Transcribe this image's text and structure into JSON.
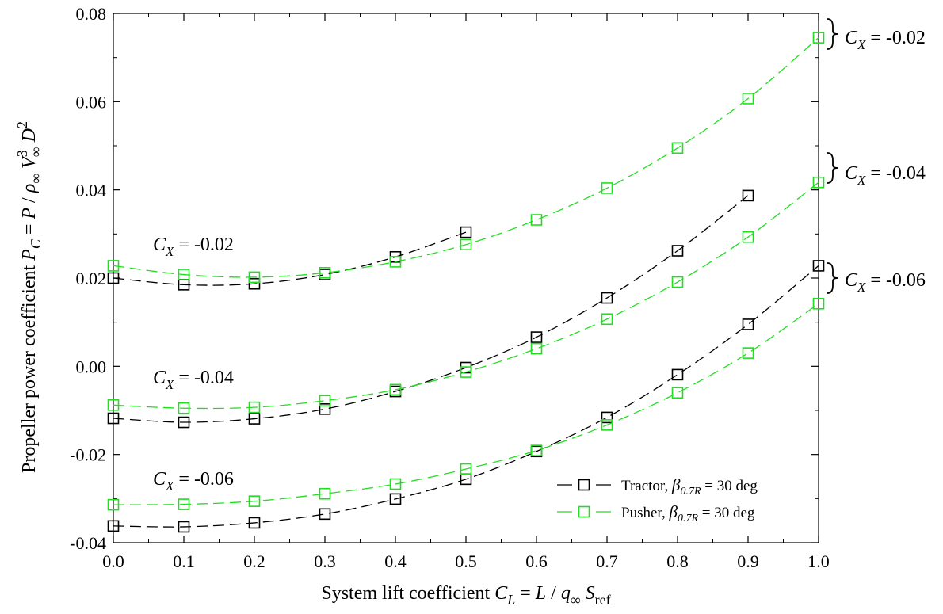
{
  "chart_data": {
    "type": "line",
    "xlabel": {
      "main": "System lift coefficient ",
      "sym": "C",
      "sub": "L",
      "rest": " = L / q",
      "qsub": "∞",
      "s": " S",
      "ssub": "ref"
    },
    "ylabel": "Propeller power coefficient P_C = P / ρ∞ V∞³ D²",
    "xlim": [
      0.0,
      1.0
    ],
    "ylim": [
      -0.04,
      0.08
    ],
    "x_ticks": [
      "0.0",
      "0.1",
      "0.2",
      "0.3",
      "0.4",
      "0.5",
      "0.6",
      "0.7",
      "0.8",
      "0.9",
      "1.0"
    ],
    "y_ticks": [
      "-0.04",
      "-0.02",
      "0.00",
      "0.02",
      "0.04",
      "0.06",
      "0.08"
    ],
    "grid": false,
    "legend_position": "bottom-right",
    "legend": [
      {
        "label": "Tractor, ",
        "beta": "β",
        "beta_sub": "0.7R",
        "rest": " = 30 deg",
        "color": "#000000"
      },
      {
        "label": "Pusher, ",
        "beta": "β",
        "beta_sub": "0.7R",
        "rest": " = 30 deg",
        "color": "#22dd22"
      }
    ],
    "series": [
      {
        "group": "Tractor",
        "cx": "-0.02",
        "color": "#000000",
        "x": [
          0.0,
          0.1,
          0.2,
          0.3,
          0.4,
          0.5
        ],
        "y": [
          0.02,
          0.0185,
          0.0187,
          0.0208,
          0.0248,
          0.0304
        ]
      },
      {
        "group": "Tractor",
        "cx": "-0.04",
        "color": "#000000",
        "x": [
          0.0,
          0.1,
          0.2,
          0.3,
          0.4,
          0.5,
          0.6,
          0.7,
          0.8,
          0.9
        ],
        "y": [
          -0.0118,
          -0.0127,
          -0.0119,
          -0.0097,
          -0.0057,
          -0.0003,
          0.0066,
          0.0155,
          0.0262,
          0.0387
        ]
      },
      {
        "group": "Tractor",
        "cx": "-0.06",
        "color": "#000000",
        "x": [
          0.0,
          0.1,
          0.2,
          0.3,
          0.4,
          0.5,
          0.6,
          0.7,
          0.8,
          0.9,
          1.0
        ],
        "y": [
          -0.0362,
          -0.0364,
          -0.0355,
          -0.0335,
          -0.0301,
          -0.0256,
          -0.0193,
          -0.0116,
          -0.0019,
          0.0095,
          0.0228
        ]
      },
      {
        "group": "Pusher",
        "cx": "-0.02",
        "color": "#22dd22",
        "x": [
          0.0,
          0.1,
          0.2,
          0.3,
          0.4,
          0.5,
          0.6,
          0.7,
          0.8,
          0.9,
          1.0
        ],
        "y": [
          0.0228,
          0.0208,
          0.0202,
          0.0212,
          0.0237,
          0.0276,
          0.0332,
          0.0404,
          0.0495,
          0.0607,
          0.0745
        ]
      },
      {
        "group": "Pusher",
        "cx": "-0.04",
        "color": "#22dd22",
        "x": [
          0.0,
          0.1,
          0.2,
          0.3,
          0.4,
          0.5,
          0.6,
          0.7,
          0.8,
          0.9,
          1.0
        ],
        "y": [
          -0.0088,
          -0.0095,
          -0.0093,
          -0.0078,
          -0.0053,
          -0.0013,
          0.004,
          0.0107,
          0.0191,
          0.0293,
          0.0417
        ]
      },
      {
        "group": "Pusher",
        "cx": "-0.06",
        "color": "#22dd22",
        "x": [
          0.0,
          0.1,
          0.2,
          0.3,
          0.4,
          0.5,
          0.6,
          0.7,
          0.8,
          0.9,
          1.0
        ],
        "y": [
          -0.0314,
          -0.0313,
          -0.0306,
          -0.0289,
          -0.0267,
          -0.0233,
          -0.0191,
          -0.0133,
          -0.006,
          0.003,
          0.0142
        ]
      }
    ],
    "annotations_left": [
      {
        "sym": "C",
        "sub": "X",
        "text": " = -0.02"
      },
      {
        "sym": "C",
        "sub": "X",
        "text": " = -0.04"
      },
      {
        "sym": "C",
        "sub": "X",
        "text": " = -0.06"
      }
    ],
    "annotations_right": [
      {
        "sym": "C",
        "sub": "X",
        "text": " = -0.02"
      },
      {
        "sym": "C",
        "sub": "X",
        "text": " = -0.04"
      },
      {
        "sym": "C",
        "sub": "X",
        "text": " = -0.06"
      }
    ]
  }
}
